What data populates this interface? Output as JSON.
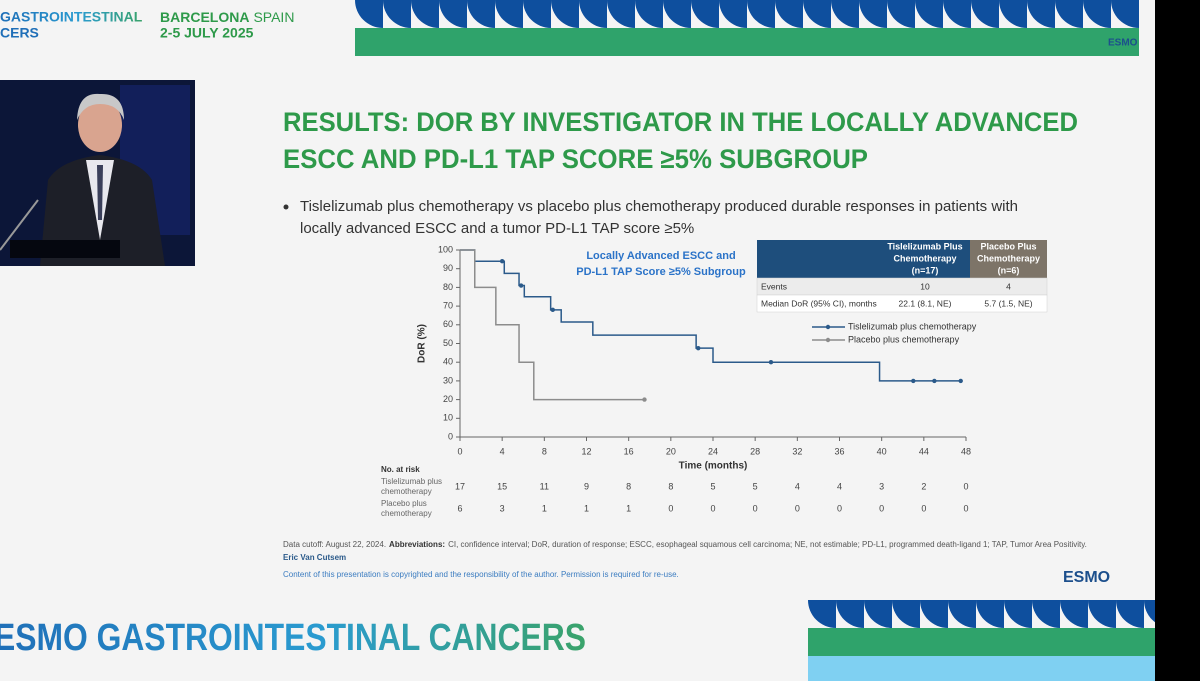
{
  "header": {
    "event_line1": "GASTROINTESTINAL",
    "event_line2": "CERS",
    "city": "BARCELONA",
    "country": "SPAIN",
    "dates": "2-5 JULY 2025"
  },
  "logos": {
    "top": "ESMO",
    "bottom": "ESMO"
  },
  "slide": {
    "title_lines": [
      "RESULTS: DOR BY INVESTIGATOR IN THE LOCALLY ADVANCED",
      "ESCC AND PD-L1 TAP SCORE ≥5% SUBGROUP"
    ],
    "bullet_lines": [
      "Tislelizumab plus chemotherapy vs placebo plus chemotherapy produced durable responses in patients with",
      "locally advanced ESCC and a tumor PD-L1 TAP score ≥5%"
    ],
    "footnote": {
      "cutoff": "Data cutoff: August 22, 2024.",
      "abbrev_label": "Abbreviations:",
      "abbrev_text": "CI, confidence interval; DoR, duration of response; ESCC, esophageal squamous cell carcinoma; NE, not estimable; PD-L1, programmed death-ligand 1; TAP, Tumor Area Positivity."
    },
    "presenter": "Eric Van Cutsem",
    "copyright": "Content of this presentation is copyrighted and the responsibility of the author. Permission is required for re-use."
  },
  "summary_table": {
    "headers": [
      [
        "Tislelizumab Plus",
        "Chemotherapy",
        "(n=17)"
      ],
      [
        "Placebo Plus",
        "Chemotherapy",
        "(n=6)"
      ]
    ],
    "rows": [
      [
        "Events",
        10,
        4
      ],
      [
        "Median DoR (95% CI), months",
        "22.1 (8.1, NE)",
        "5.7 (1.5, NE)"
      ]
    ]
  },
  "footer_banner": "ESMO GASTROINTESTINAL CANCERS",
  "chart_data": {
    "type": "step",
    "subtitle_lines": [
      "Locally Advanced ESCC and",
      "PD-L1 TAP Score ≥5% Subgroup"
    ],
    "x_label": "Time (months)",
    "y_label": "DoR (%)",
    "xlim": [
      0,
      48
    ],
    "xticks": [
      0,
      4,
      8,
      12,
      16,
      20,
      24,
      28,
      32,
      36,
      40,
      44,
      48
    ],
    "ylim": [
      0,
      100
    ],
    "yticks": [
      0,
      10,
      20,
      30,
      40,
      50,
      60,
      70,
      80,
      90,
      100
    ],
    "series": [
      {
        "name": "Tislelizumab plus chemotherapy",
        "color": "#2b5a8a",
        "x": [
          0,
          1.4,
          4.2,
          5.6,
          6.1,
          8.6,
          9.6,
          12.6,
          22.4,
          24,
          39.8,
          47.5
        ],
        "values": [
          100,
          94,
          87.5,
          81,
          75,
          68,
          61.5,
          54.5,
          47.5,
          40,
          30,
          30
        ],
        "censored": {
          "x": [
            4,
            5.8,
            8.8,
            22.6,
            29.5,
            43,
            45,
            47.5
          ],
          "values": [
            94,
            81,
            68,
            47.5,
            40,
            30,
            30,
            30
          ]
        }
      },
      {
        "name": "Placebo plus chemotherapy",
        "color": "#8c8c8c",
        "x": [
          0,
          1.4,
          3.4,
          5.6,
          7,
          17.5
        ],
        "values": [
          100,
          80,
          60,
          40,
          20,
          20
        ],
        "censored": {
          "x": [
            17.5
          ],
          "values": [
            20
          ]
        }
      }
    ],
    "risk_table": {
      "title": "No. at risk",
      "rows": [
        {
          "label": [
            "Tislelizumab plus",
            "chemotherapy"
          ],
          "values": [
            17,
            15,
            11,
            9,
            8,
            8,
            5,
            5,
            4,
            4,
            3,
            2,
            0
          ]
        },
        {
          "label": [
            "Placebo plus",
            "chemotherapy"
          ],
          "values": [
            6,
            3,
            1,
            1,
            1,
            0,
            0,
            0,
            0,
            0,
            0,
            0,
            0
          ]
        }
      ]
    }
  }
}
